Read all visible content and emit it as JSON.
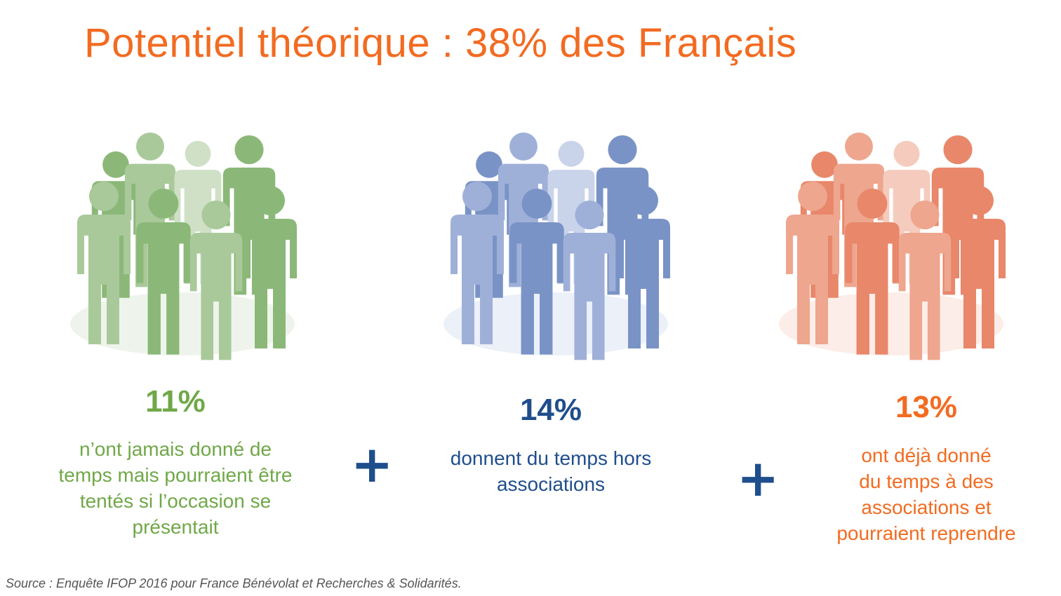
{
  "title": "Potentiel théorique : 38% des Français",
  "groups": [
    {
      "percent": "11%",
      "description": [
        "n’ont jamais donné de",
        "temps mais pourraient être",
        "tentés si l’occasion se",
        "présentait"
      ],
      "color": "#70a848",
      "figure_colors": [
        "#8bb878",
        "#a9c99a",
        "#cfe0c6"
      ]
    },
    {
      "percent": "14%",
      "description": [
        "donnent du temps hors",
        "associations"
      ],
      "color": "#1f4e8c",
      "figure_colors": [
        "#7a93c6",
        "#9fb0d8",
        "#c9d3ea"
      ]
    },
    {
      "percent": "13%",
      "description": [
        "ont déjà donné",
        "du temps à des",
        "associations et",
        "pourraient reprendre"
      ],
      "color": "#f26b21",
      "figure_colors": [
        "#e8876a",
        "#eea68e",
        "#f5cbbd"
      ]
    }
  ],
  "plus_sign": "+",
  "source": "Source : Enquête IFOP 2016 pour France Bénévolat et Recherches & Solidarités."
}
